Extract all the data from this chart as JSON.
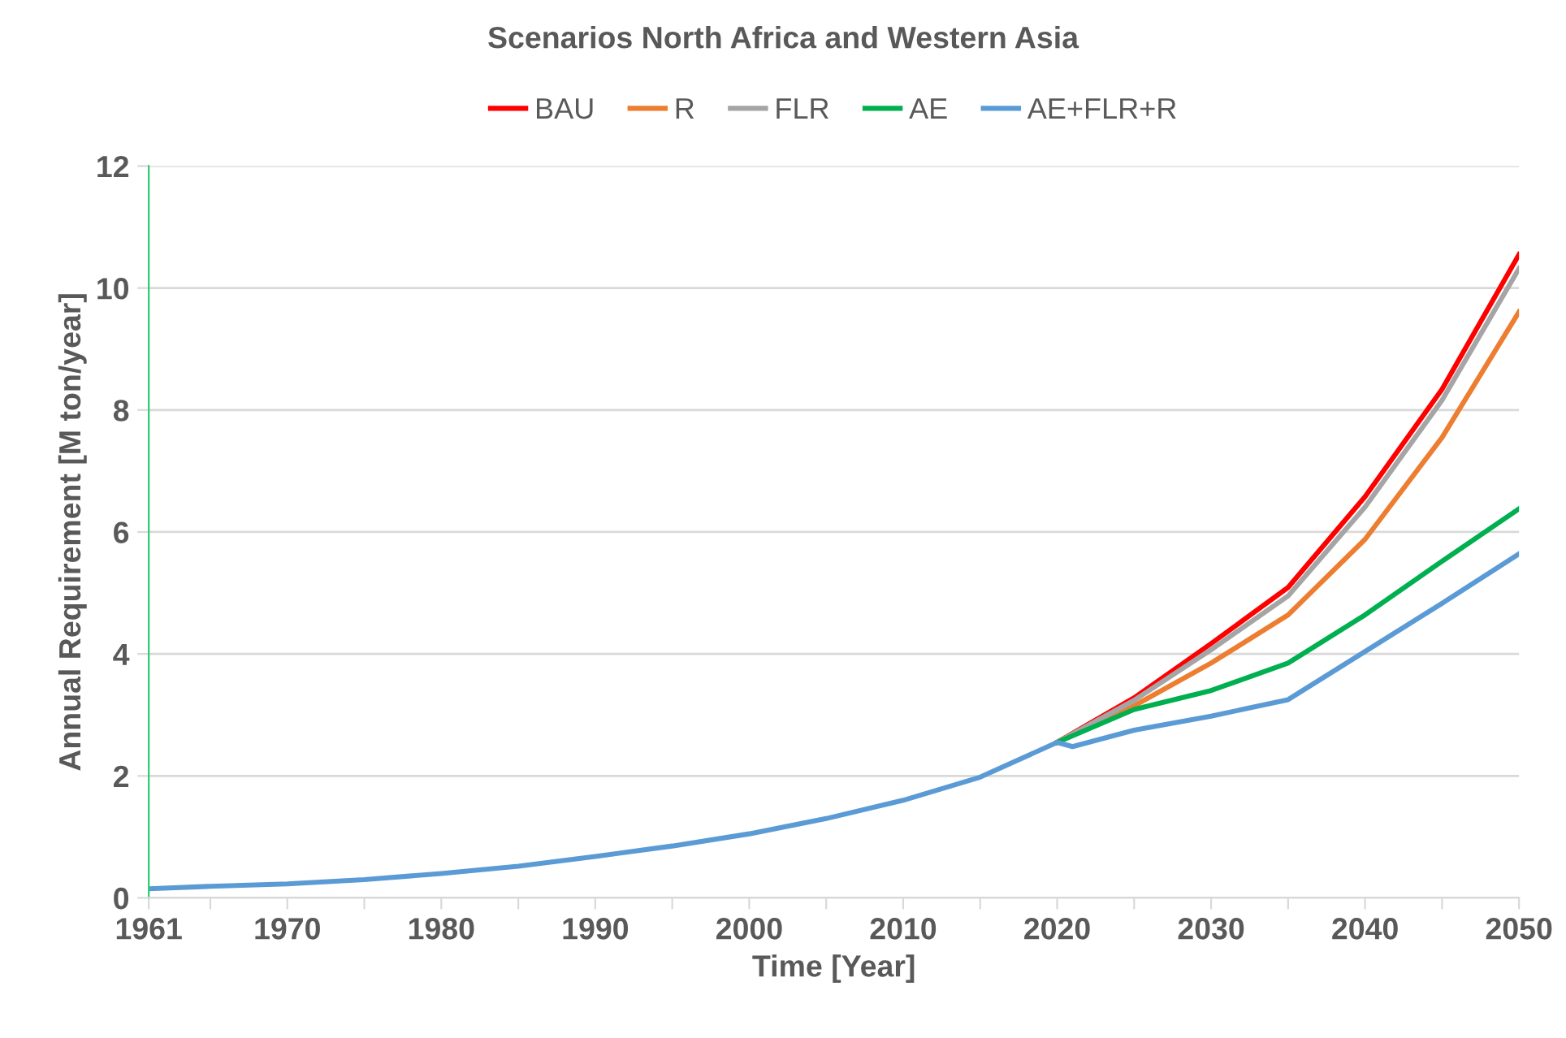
{
  "chart_data": {
    "type": "line",
    "title": "Scenarios North Africa and Western Asia",
    "xlabel": "Time [Year]",
    "ylabel": "Annual Requirement [M ton/year]",
    "xlim": [
      1961,
      2050
    ],
    "xticks": [
      1961,
      {
        "value": 1965,
        "label": null
      },
      1970,
      {
        "value": 1975,
        "label": null
      },
      1980,
      {
        "value": 1985,
        "label": null
      },
      1990,
      {
        "value": 1995,
        "label": null
      },
      2000,
      {
        "value": 2005,
        "label": null
      },
      2010,
      {
        "value": 2015,
        "label": null
      },
      2020,
      {
        "value": 2025,
        "label": null
      },
      2030,
      {
        "value": 2035,
        "label": null
      },
      2040,
      {
        "value": 2045,
        "label": null
      },
      2050
    ],
    "ylim": [
      0,
      12
    ],
    "yticks": [
      0,
      2,
      4,
      6,
      8,
      10,
      12
    ],
    "grid": "y",
    "legend": "top",
    "marker": "none",
    "line_style": "solid",
    "series": [
      {
        "name": "BAU",
        "color": "#ff0000",
        "x": [
          2020,
          2025,
          2030,
          2035,
          2040,
          2045,
          2050
        ],
        "values": [
          2.55,
          3.28,
          4.17,
          5.09,
          6.58,
          8.34,
          10.55
        ]
      },
      {
        "name": "R",
        "color": "#ed7d31",
        "x": [
          2020,
          2025,
          2030,
          2035,
          2040,
          2045,
          2050
        ],
        "values": [
          2.55,
          3.15,
          3.85,
          4.64,
          5.88,
          7.55,
          9.61
        ]
      },
      {
        "name": "FLR",
        "color": "#a5a5a5",
        "x": [
          2020,
          2025,
          2030,
          2035,
          2040,
          2045,
          2050
        ],
        "values": [
          2.55,
          3.24,
          4.07,
          4.95,
          6.41,
          8.16,
          10.32
        ]
      },
      {
        "name": "AE",
        "color": "#00b050",
        "x": [
          2020,
          2025,
          2030,
          2035,
          2040,
          2045,
          2050
        ],
        "values": [
          2.55,
          3.09,
          3.4,
          3.85,
          4.64,
          5.52,
          6.38
        ]
      },
      {
        "name": "AE+FLR+R",
        "color": "#5b9bd5",
        "x": [
          1961,
          1965,
          1970,
          1975,
          1980,
          1985,
          1990,
          1995,
          2000,
          2005,
          2010,
          2015,
          2020,
          2021,
          2025,
          2030,
          2035,
          2040,
          2045,
          2050
        ],
        "values": [
          0.15,
          0.19,
          0.23,
          0.3,
          0.4,
          0.52,
          0.68,
          0.85,
          1.05,
          1.3,
          1.6,
          1.98,
          2.55,
          2.48,
          2.75,
          2.98,
          3.25,
          4.04,
          4.83,
          5.64
        ]
      }
    ]
  }
}
